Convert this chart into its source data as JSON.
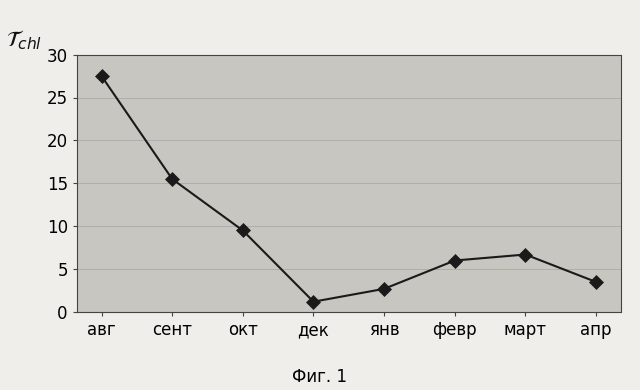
{
  "categories": [
    "авг",
    "сент",
    "окт",
    "дек",
    "янв",
    "февр",
    "март",
    "апр"
  ],
  "values": [
    27.5,
    15.5,
    9.5,
    1.2,
    2.7,
    6.0,
    6.7,
    3.5
  ],
  "line_color": "#1a1a1a",
  "marker_color": "#1a1a1a",
  "fig_bg_color": "#f0eeea",
  "plot_bg_color": "#c8c6c0",
  "ylabel": "$\\mathcal{T}_{chl}$",
  "ylim": [
    0,
    30
  ],
  "yticks": [
    0,
    5,
    10,
    15,
    20,
    25,
    30
  ],
  "caption": "Фиг. 1",
  "caption_fontsize": 12,
  "tick_fontsize": 12,
  "ylabel_fontsize": 16,
  "marker_size": 7,
  "linewidth": 1.5
}
